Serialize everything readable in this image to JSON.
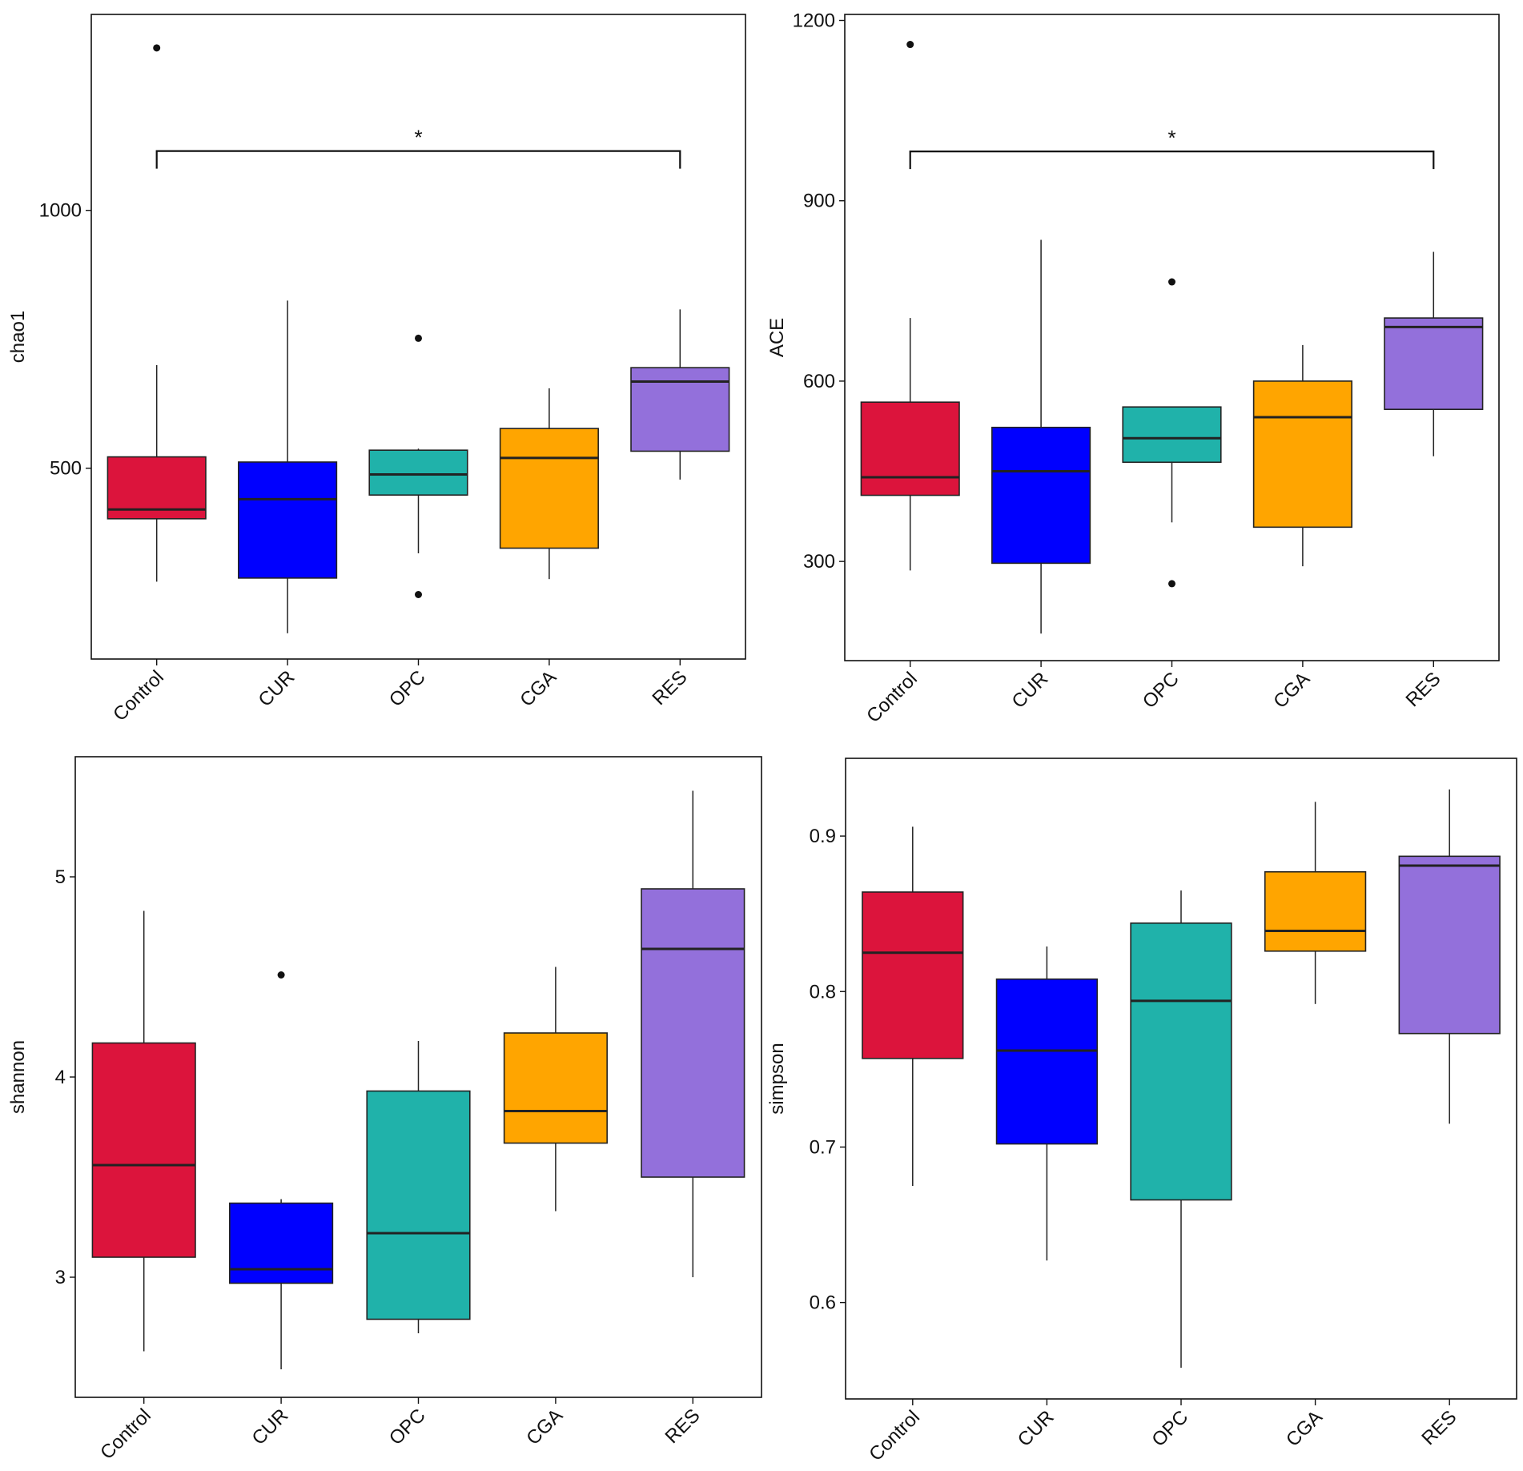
{
  "colors": {
    "Control": "#dc143c",
    "CUR": "#0000ff",
    "OPC": "#20b2aa",
    "CGA": "#ffa500",
    "RES": "#9370db"
  },
  "chart_data": [
    {
      "type": "boxplot",
      "id": "chao1",
      "title": "",
      "xlabel": "",
      "ylabel": "chao1",
      "categories": [
        "Control",
        "CUR",
        "OPC",
        "CGA",
        "RES"
      ],
      "ylim": [
        130,
        1380
      ],
      "yticks": [
        500,
        1000
      ],
      "ytick_labels": [
        "500",
        "1000"
      ],
      "boxes": [
        {
          "category": "Control",
          "whisker_low": 280,
          "q1": 402,
          "median": 420,
          "q3": 522,
          "whisker_high": 700,
          "outliers": [
            1315
          ]
        },
        {
          "category": "CUR",
          "whisker_low": 180,
          "q1": 287,
          "median": 440,
          "q3": 512,
          "whisker_high": 825,
          "outliers": []
        },
        {
          "category": "OPC",
          "whisker_low": 335,
          "q1": 448,
          "median": 488,
          "q3": 535,
          "whisker_high": 538,
          "outliers": [
            752,
            255
          ]
        },
        {
          "category": "CGA",
          "whisker_low": 285,
          "q1": 345,
          "median": 520,
          "q3": 577,
          "whisker_high": 655,
          "outliers": []
        },
        {
          "category": "RES",
          "whisker_low": 478,
          "q1": 533,
          "median": 668,
          "q3": 695,
          "whisker_high": 808,
          "outliers": []
        }
      ],
      "significance": [
        {
          "from": "Control",
          "to": "RES",
          "label": "*",
          "y": 1115
        }
      ]
    },
    {
      "type": "boxplot",
      "id": "ace",
      "title": "",
      "xlabel": "",
      "ylabel": "ACE",
      "categories": [
        "Control",
        "CUR",
        "OPC",
        "CGA",
        "RES"
      ],
      "ylim": [
        135,
        1210
      ],
      "yticks": [
        300,
        600,
        900,
        1200
      ],
      "ytick_labels": [
        "300",
        "600",
        "900",
        "1200"
      ],
      "boxes": [
        {
          "category": "Control",
          "whisker_low": 285,
          "q1": 410,
          "median": 440,
          "q3": 565,
          "whisker_high": 705,
          "outliers": [
            1160
          ]
        },
        {
          "category": "CUR",
          "whisker_low": 180,
          "q1": 297,
          "median": 450,
          "q3": 523,
          "whisker_high": 835,
          "outliers": []
        },
        {
          "category": "OPC",
          "whisker_low": 365,
          "q1": 465,
          "median": 505,
          "q3": 557,
          "whisker_high": 557,
          "outliers": [
            765,
            263
          ]
        },
        {
          "category": "CGA",
          "whisker_low": 292,
          "q1": 357,
          "median": 540,
          "q3": 600,
          "whisker_high": 660,
          "outliers": []
        },
        {
          "category": "RES",
          "whisker_low": 475,
          "q1": 553,
          "median": 690,
          "q3": 705,
          "whisker_high": 815,
          "outliers": []
        }
      ],
      "significance": [
        {
          "from": "Control",
          "to": "RES",
          "label": "*",
          "y": 982
        }
      ]
    },
    {
      "type": "boxplot",
      "id": "shannon",
      "title": "",
      "xlabel": "",
      "ylabel": "shannon",
      "categories": [
        "Control",
        "CUR",
        "OPC",
        "CGA",
        "RES"
      ],
      "ylim": [
        2.4,
        5.6
      ],
      "yticks": [
        3,
        4,
        5
      ],
      "ytick_labels": [
        "3",
        "4",
        "5"
      ],
      "boxes": [
        {
          "category": "Control",
          "whisker_low": 2.63,
          "q1": 3.1,
          "median": 3.56,
          "q3": 4.17,
          "whisker_high": 4.83,
          "outliers": []
        },
        {
          "category": "CUR",
          "whisker_low": 2.54,
          "q1": 2.97,
          "median": 3.04,
          "q3": 3.37,
          "whisker_high": 3.39,
          "outliers": [
            4.51
          ]
        },
        {
          "category": "OPC",
          "whisker_low": 2.72,
          "q1": 2.79,
          "median": 3.22,
          "q3": 3.93,
          "whisker_high": 4.18,
          "outliers": []
        },
        {
          "category": "CGA",
          "whisker_low": 3.33,
          "q1": 3.67,
          "median": 3.83,
          "q3": 4.22,
          "whisker_high": 4.55,
          "outliers": []
        },
        {
          "category": "RES",
          "whisker_low": 3.0,
          "q1": 3.5,
          "median": 4.64,
          "q3": 4.94,
          "whisker_high": 5.43,
          "outliers": []
        }
      ],
      "significance": []
    },
    {
      "type": "boxplot",
      "id": "simpson",
      "title": "",
      "xlabel": "",
      "ylabel": "simpson",
      "categories": [
        "Control",
        "CUR",
        "OPC",
        "CGA",
        "RES"
      ],
      "ylim": [
        0.538,
        0.95
      ],
      "yticks": [
        0.6,
        0.7,
        0.8,
        0.9
      ],
      "ytick_labels": [
        "0.6",
        "0.7",
        "0.8",
        "0.9"
      ],
      "boxes": [
        {
          "category": "Control",
          "whisker_low": 0.675,
          "q1": 0.757,
          "median": 0.825,
          "q3": 0.864,
          "whisker_high": 0.906,
          "outliers": []
        },
        {
          "category": "CUR",
          "whisker_low": 0.627,
          "q1": 0.702,
          "median": 0.762,
          "q3": 0.808,
          "whisker_high": 0.829,
          "outliers": []
        },
        {
          "category": "OPC",
          "whisker_low": 0.558,
          "q1": 0.666,
          "median": 0.794,
          "q3": 0.844,
          "whisker_high": 0.865,
          "outliers": []
        },
        {
          "category": "CGA",
          "whisker_low": 0.792,
          "q1": 0.826,
          "median": 0.839,
          "q3": 0.877,
          "whisker_high": 0.922,
          "outliers": []
        },
        {
          "category": "RES",
          "whisker_low": 0.715,
          "q1": 0.773,
          "median": 0.881,
          "q3": 0.887,
          "whisker_high": 0.93,
          "outliers": []
        }
      ],
      "significance": []
    }
  ]
}
